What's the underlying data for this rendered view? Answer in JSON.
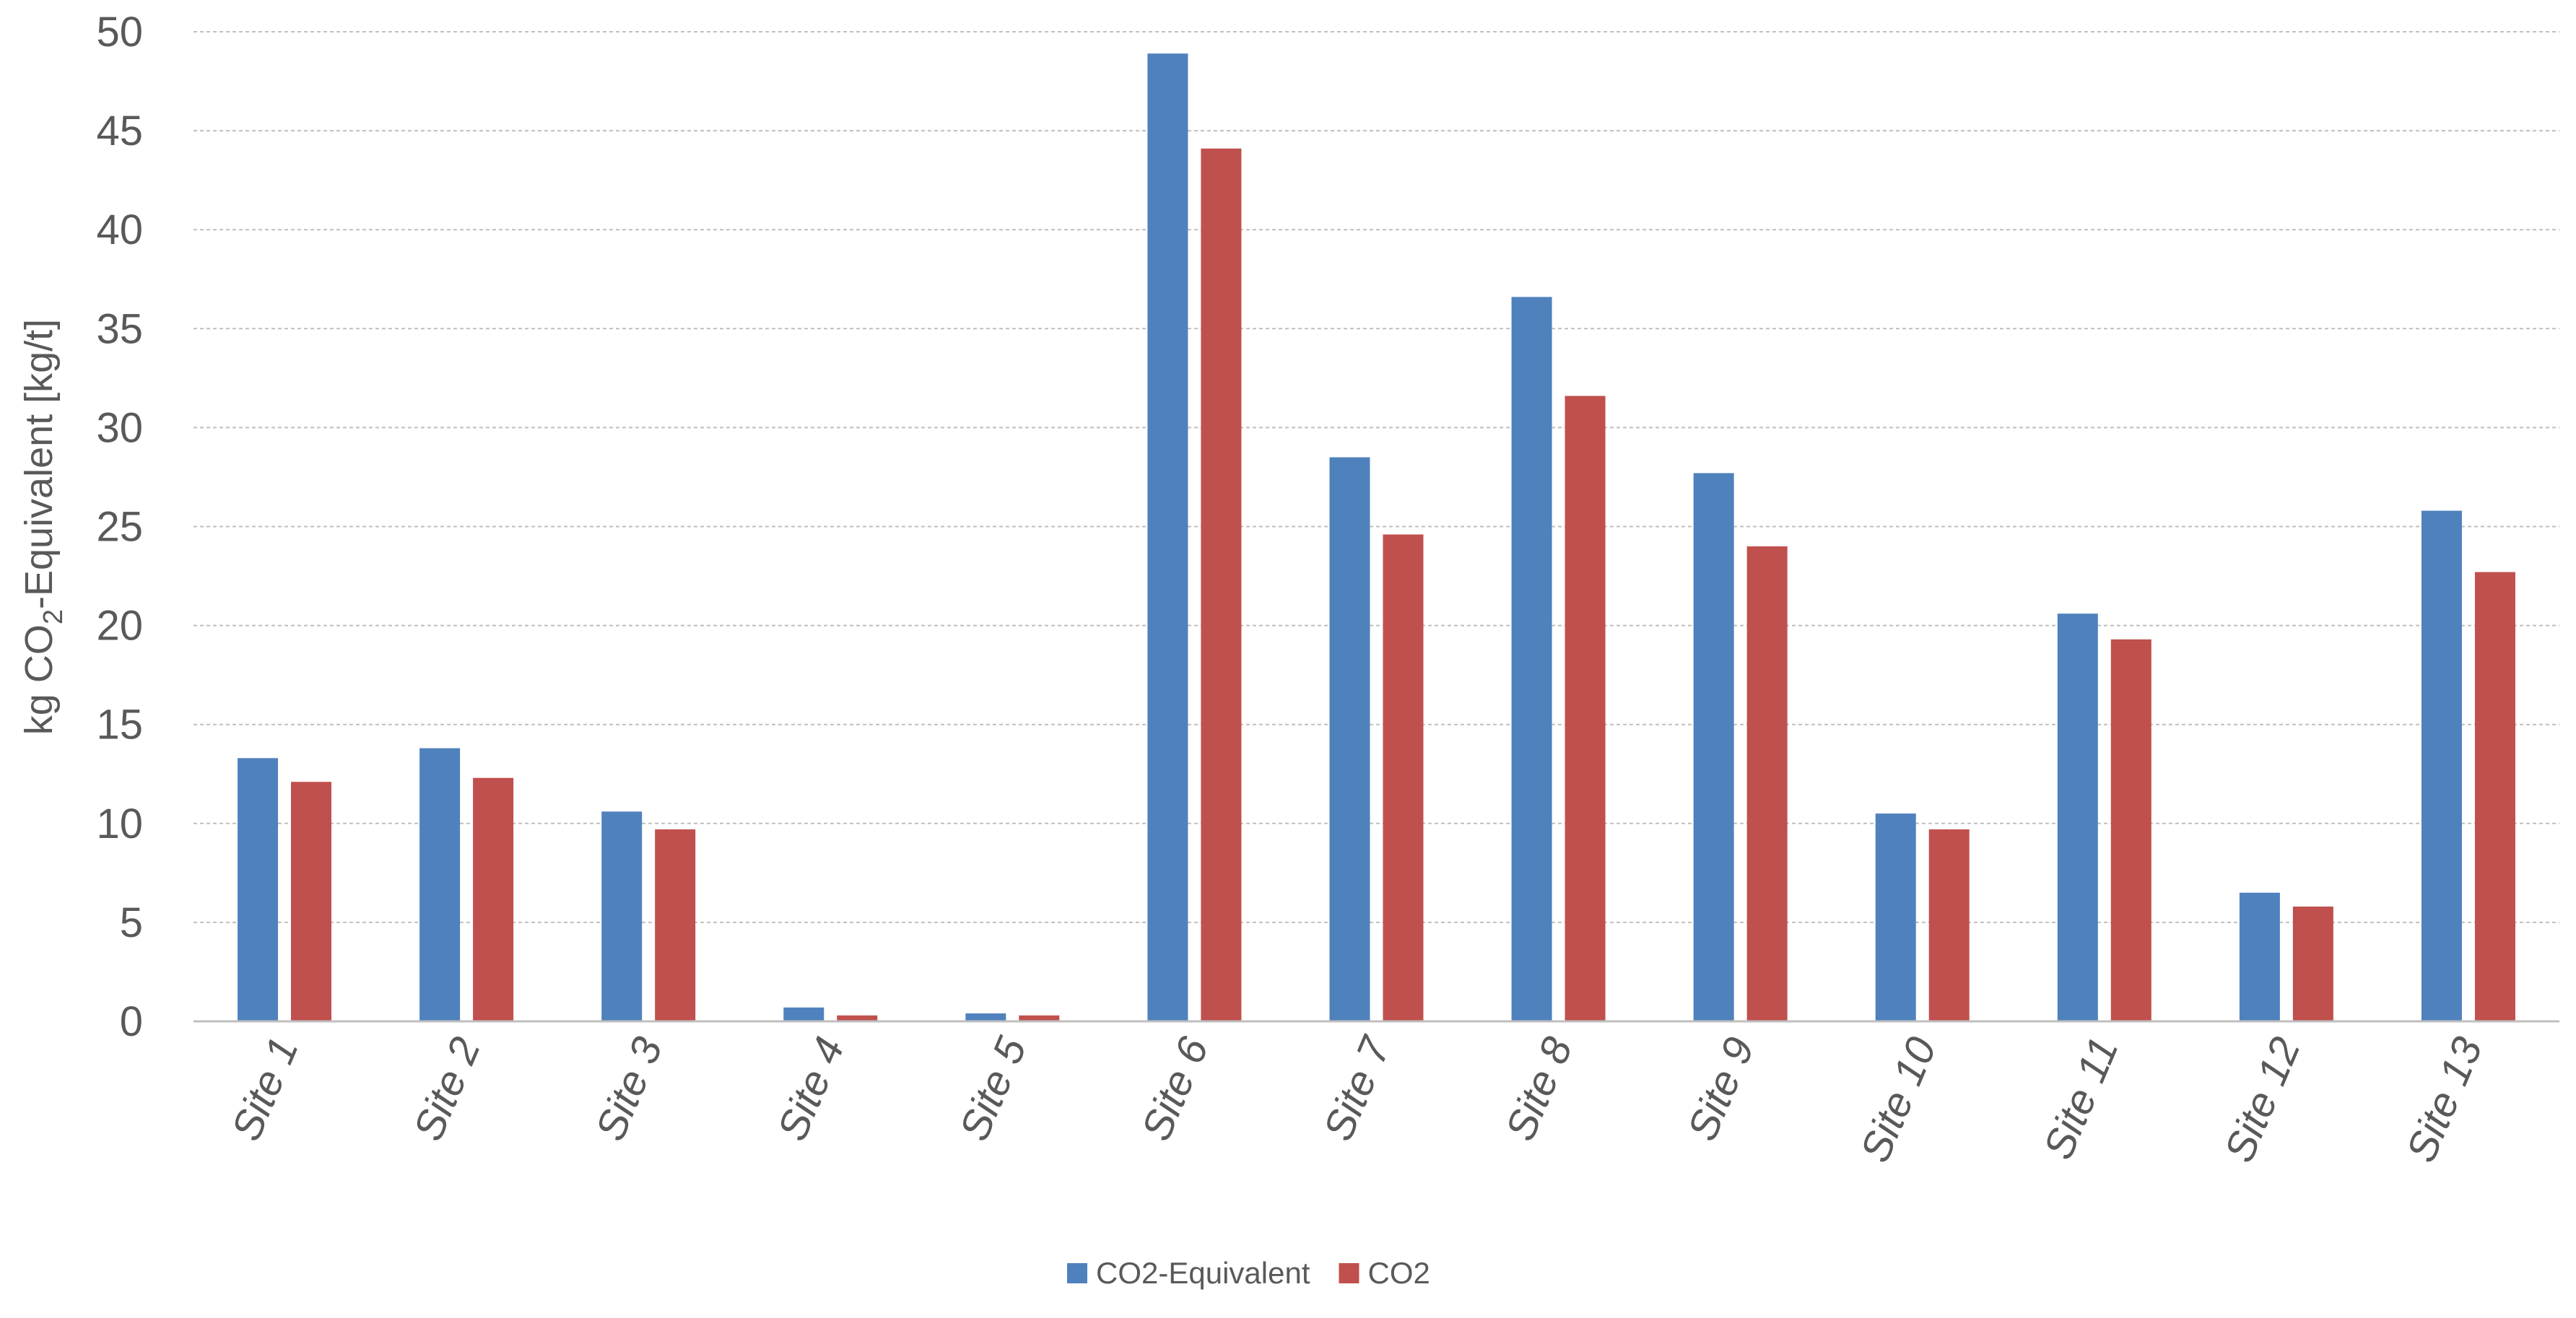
{
  "chart_data": {
    "type": "bar",
    "categories": [
      "Site 1",
      "Site 2",
      "Site 3",
      "Site 4",
      "Site 5",
      "Site 6",
      "Site 7",
      "Site 8",
      "Site 9",
      "Site 10",
      "Site 11",
      "Site 12",
      "Site 13"
    ],
    "series": [
      {
        "name": "CO2-Equivalent",
        "color": "#4f81bd",
        "values": [
          13.3,
          13.8,
          10.6,
          0.7,
          0.4,
          48.9,
          28.5,
          36.6,
          27.7,
          10.5,
          20.6,
          6.5,
          25.8
        ]
      },
      {
        "name": "CO2",
        "color": "#c0504d",
        "values": [
          12.1,
          12.3,
          9.7,
          0.3,
          0.3,
          44.1,
          24.6,
          31.6,
          24.0,
          9.7,
          19.3,
          5.8,
          22.7
        ]
      }
    ],
    "y_ticks": [
      "0",
      "5",
      "10",
      "15",
      "20",
      "25",
      "30",
      "35",
      "40",
      "45",
      "50"
    ],
    "ylim": [
      0,
      50
    ],
    "ylabel": {
      "prefix": "kg CO",
      "subscript": "2",
      "suffix": "-Equivalent [kg/t]"
    },
    "xlabel": "",
    "title": "",
    "grid": true,
    "legend_position": "bottom-center"
  }
}
